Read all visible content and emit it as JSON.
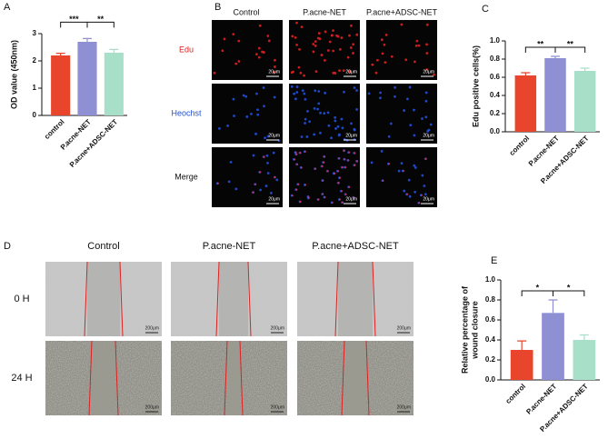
{
  "panel_labels": [
    "A",
    "B",
    "C",
    "D",
    "E"
  ],
  "chart_data": [
    {
      "type": "bar",
      "ylabel": "OD value (450nm)",
      "categories": [
        "control",
        "P.acne-NET",
        "P.acne+ADSC-NET"
      ],
      "values": [
        2.2,
        2.7,
        2.3
      ],
      "errors": [
        0.08,
        0.12,
        0.12
      ],
      "colors": [
        "#e8452c",
        "#8f8fd4",
        "#a8dfc8"
      ],
      "ylim": [
        0,
        3
      ],
      "yticks": [
        0,
        1,
        2,
        3
      ],
      "significance": [
        "***",
        "**"
      ]
    },
    {
      "type": "bar",
      "ylabel": "Edu positive cells(%)",
      "categories": [
        "control",
        "P.acne-NET",
        "P.acne+ADSC-NET"
      ],
      "values": [
        0.62,
        0.81,
        0.67
      ],
      "errors": [
        0.03,
        0.02,
        0.03
      ],
      "colors": [
        "#e8452c",
        "#8f8fd4",
        "#a8dfc8"
      ],
      "ylim": [
        0,
        1
      ],
      "yticks": [
        {
          "value": 0,
          "label": "0.0"
        },
        0.2,
        0.4,
        0.6,
        0.8,
        {
          "value": 1,
          "label": "1.0"
        }
      ],
      "significance": [
        "**",
        "**"
      ]
    },
    {
      "type": "bar",
      "ylabel": [
        "Relative percentage of",
        "wound closure"
      ],
      "categories": [
        "control",
        "P.acne-NET",
        "P.acne+ADSC-NET"
      ],
      "values": [
        0.3,
        0.67,
        0.4
      ],
      "errors": [
        0.09,
        0.13,
        0.05
      ],
      "colors": [
        "#e8452c",
        "#8f8fd4",
        "#a8dfc8"
      ],
      "ylim": [
        0,
        1
      ],
      "yticks": [
        {
          "value": 0,
          "label": "0.0"
        },
        0.2,
        0.4,
        0.6,
        0.8,
        {
          "value": 1,
          "label": "1.0"
        }
      ],
      "significance": [
        "*",
        "*"
      ]
    }
  ],
  "image_grids": [
    {
      "columns": [
        "Control",
        "P.acne-NET",
        "P.acne+ADSC-NET"
      ],
      "rows": [
        "Edu",
        "Heochst",
        "Merge"
      ],
      "scale_bars": [
        [
          "20μm",
          "20μm",
          "20μm"
        ],
        [
          "20μm",
          "20μm",
          "20μm"
        ],
        [
          "20μm",
          "20μm",
          "20μm"
        ]
      ]
    },
    {
      "columns": [
        "Control",
        "P.acne-NET",
        "P.acne+ADSC-NET"
      ],
      "rows": [
        "0 H",
        "24 H"
      ],
      "scale_bars": [
        [
          "200μm",
          "200μm",
          "200μm"
        ],
        [
          "200μm",
          "200μm",
          "200μm"
        ]
      ]
    }
  ]
}
